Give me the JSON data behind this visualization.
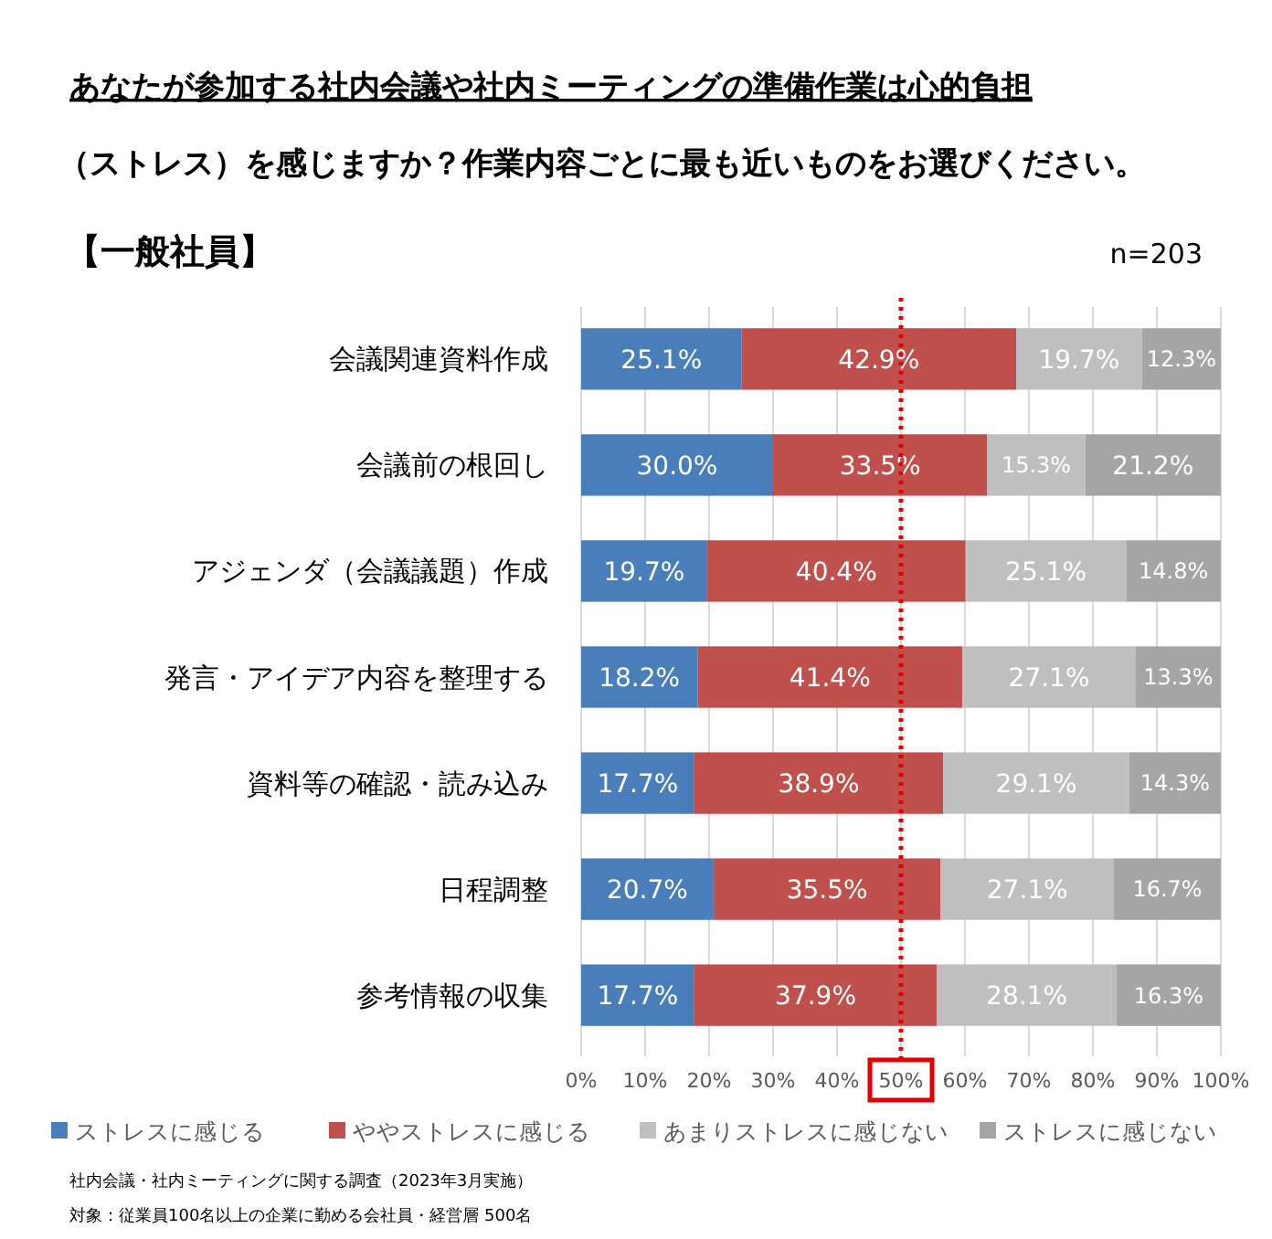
{
  "chart_data": {
    "type": "bar",
    "orientation": "horizontal",
    "stacked": true,
    "title": "あなたが参加する社内会議や社内ミーティングの準備作業は心的負担",
    "subtitle": "（ストレス）を感じますか？作業内容ごとに最も近いものをお選びください。",
    "annotations": [
      "【一般社員】",
      "n=203",
      "社内会議・社内ミーティングに関する調査（2023年3月実施）",
      "対象：従業員100名以上の企業に勤める会社員・経営層 500名"
    ],
    "categories": [
      "会議関連資料作成",
      "会議前の根回し",
      "アジェンダ（会議議題）作成",
      "発言・アイデア内容を整理する",
      "資料等の確認・読み込み",
      "日程調整",
      "参考情報の収集"
    ],
    "series": [
      {
        "name": "ストレスに感じる",
        "color": "#4a7ebb",
        "values": [
          25.1,
          30.0,
          19.7,
          18.2,
          17.7,
          20.7,
          17.7
        ],
        "value_labels": [
          "25.1%",
          "30.0%",
          "19.7%",
          "18.2%",
          "17.7%",
          "20.7%",
          "17.7%"
        ]
      },
      {
        "name": "ややストレスに感じる",
        "color": "#c0504d",
        "values": [
          42.9,
          33.5,
          40.4,
          41.4,
          38.9,
          35.5,
          37.9
        ],
        "value_labels": [
          "42.9%",
          "33.5%",
          "40.4%",
          "41.4%",
          "38.9%",
          "35.5%",
          "37.9%"
        ]
      },
      {
        "name": "あまりストレスに感じない",
        "color": "#bfbfbf",
        "values": [
          19.7,
          15.3,
          25.1,
          27.1,
          29.1,
          27.1,
          28.1
        ],
        "value_labels": [
          "19.7%",
          "15.3%",
          "25.1%",
          "27.1%",
          "29.1%",
          "27.1%",
          "28.1%"
        ]
      },
      {
        "name": "ストレスに感じない",
        "color": "#a5a5a5",
        "values": [
          12.3,
          21.2,
          14.8,
          13.3,
          14.3,
          16.7,
          16.3
        ],
        "value_labels": [
          "12.3%",
          "21.2%",
          "14.8%",
          "13.3%",
          "14.3%",
          "16.7%",
          "16.3%"
        ]
      }
    ],
    "xlim": [
      0,
      100
    ],
    "xticks": [
      {
        "value": 0,
        "label": "0%"
      },
      {
        "value": 10,
        "label": "10%"
      },
      {
        "value": 20,
        "label": "20%"
      },
      {
        "value": 30,
        "label": "30%"
      },
      {
        "value": 40,
        "label": "40%"
      },
      {
        "value": 50,
        "label": "50%"
      },
      {
        "value": 60,
        "label": "60%"
      },
      {
        "value": 70,
        "label": "70%"
      },
      {
        "value": 80,
        "label": "80%"
      },
      {
        "value": 90,
        "label": "90%"
      },
      {
        "value": 100,
        "label": "100%"
      }
    ],
    "ref_lines": [
      {
        "axis": "x",
        "value": 50,
        "color": "#e00000",
        "line_style": "dotted"
      }
    ],
    "grid": "x",
    "legend": "bottom"
  }
}
